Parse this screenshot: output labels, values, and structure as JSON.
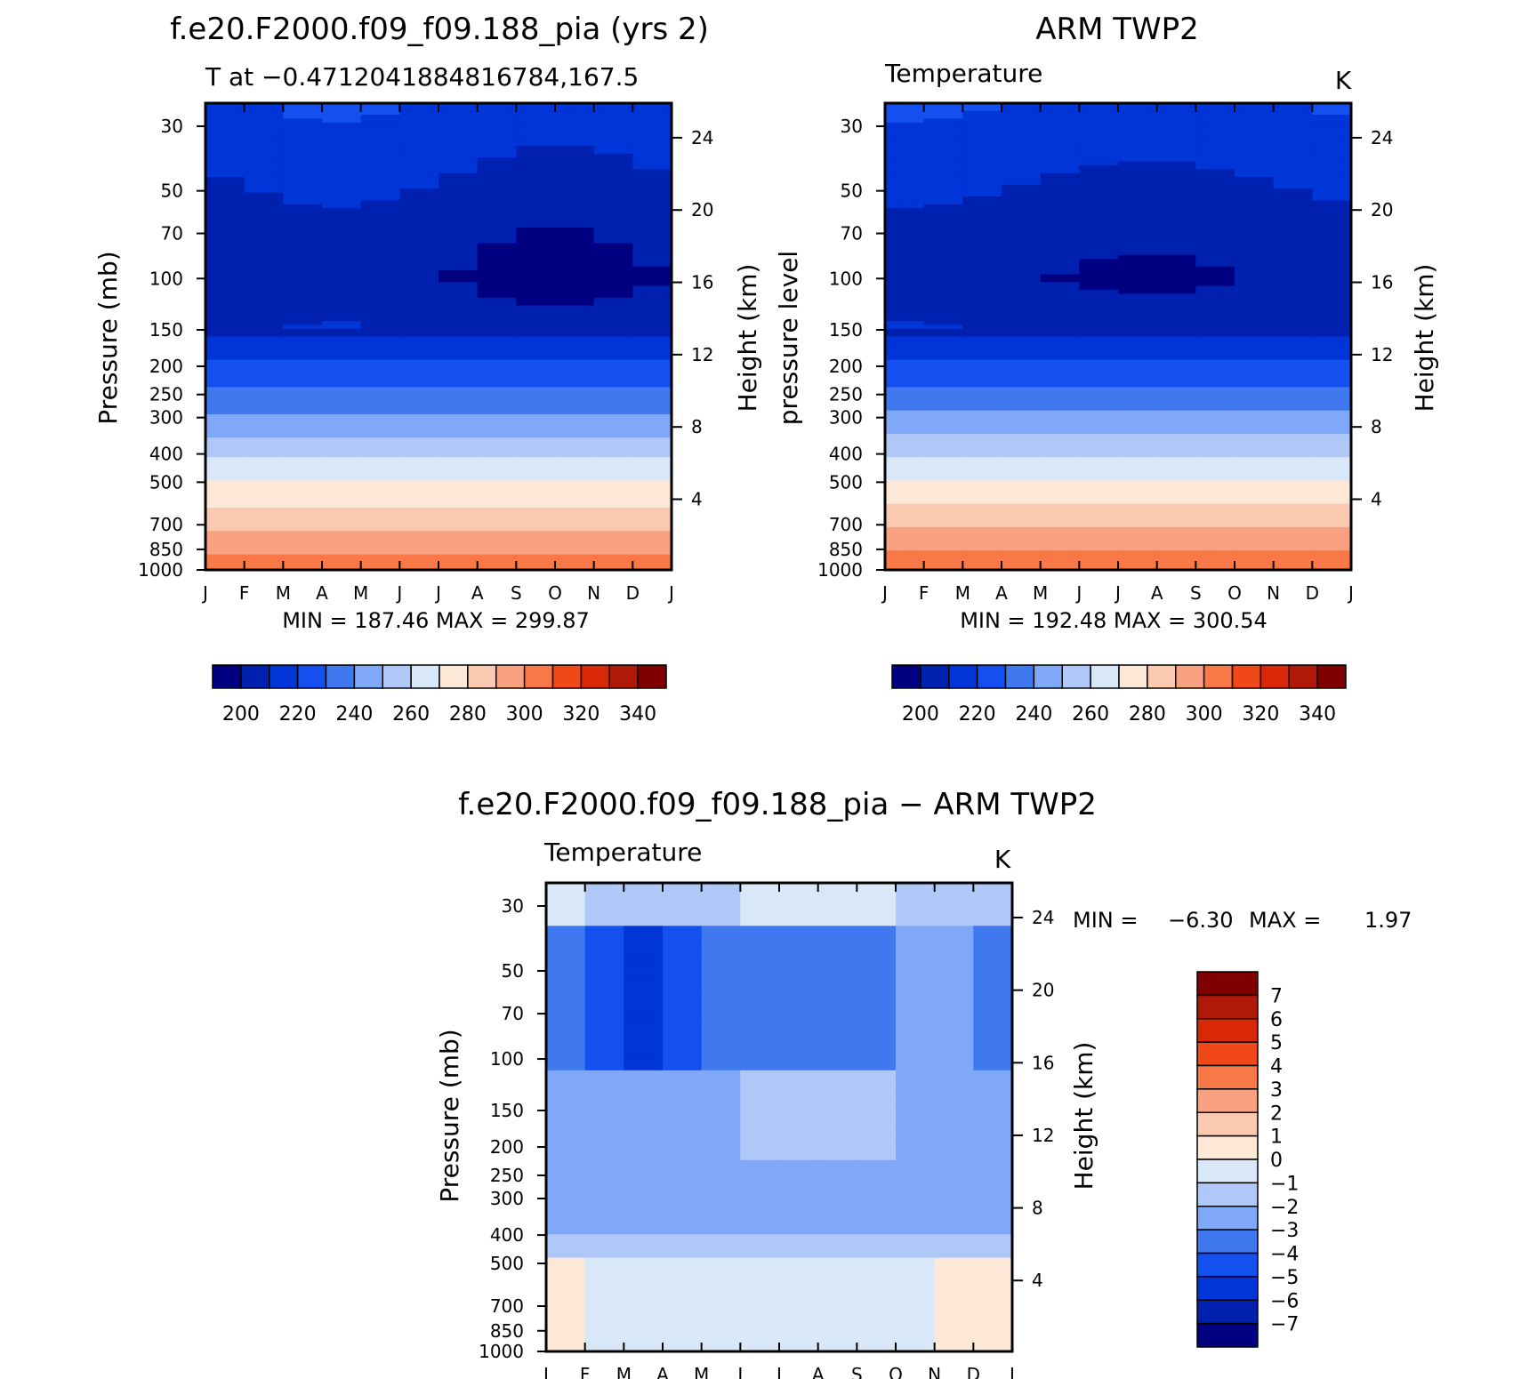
{
  "chart_data": [
    {
      "type": "heatmap",
      "title": "f.e20.F2000.f09_f09.188_pia (yrs 2)",
      "subtitle_left": "T at −0.471204188481678­4,167.5",
      "subtitle_right": "K",
      "ylabel": "Pressure (mb)",
      "ylabel_right": "Height (km)",
      "x_ticks": [
        "J",
        "F",
        "M",
        "A",
        "M",
        "J",
        "J",
        "A",
        "S",
        "O",
        "N",
        "D",
        "J"
      ],
      "y_ticks": [
        "30",
        "50",
        "70",
        "100",
        "150",
        "200",
        "250",
        "300",
        "400",
        "500",
        "700",
        "850",
        "1000"
      ],
      "y_ticks_right": [
        "24",
        "20",
        "16",
        "12",
        "8",
        "4"
      ],
      "y_scale": "log pressure",
      "min_max_text": "MIN =  187.46  MAX =  299.87",
      "min": 187.46,
      "max": 299.87,
      "colorbar_labels": [
        "200",
        "220",
        "240",
        "260",
        "280",
        "300",
        "320",
        "340"
      ],
      "band_levels_by_pressure": [
        {
          "p": 30,
          "t": 210
        },
        {
          "p": 50,
          "t": 200
        },
        {
          "p": 100,
          "t": 190
        },
        {
          "p": 150,
          "t": 200
        },
        {
          "p": 200,
          "t": 215
        },
        {
          "p": 250,
          "t": 225
        },
        {
          "p": 300,
          "t": 235
        },
        {
          "p": 400,
          "t": 250
        },
        {
          "p": 500,
          "t": 262
        },
        {
          "p": 700,
          "t": 278
        },
        {
          "p": 850,
          "t": 288
        },
        {
          "p": 1000,
          "t": 298
        }
      ]
    },
    {
      "type": "heatmap",
      "title": "ARM TWP2",
      "subtitle_left": "Temperature",
      "subtitle_right": "K",
      "ylabel": "pressure level",
      "ylabel_right": "Height (km)",
      "x_ticks": [
        "J",
        "F",
        "M",
        "A",
        "M",
        "J",
        "J",
        "A",
        "S",
        "O",
        "N",
        "D",
        "J"
      ],
      "y_ticks": [
        "30",
        "50",
        "70",
        "100",
        "150",
        "200",
        "250",
        "300",
        "400",
        "500",
        "700",
        "850",
        "1000"
      ],
      "y_ticks_right": [
        "24",
        "20",
        "16",
        "12",
        "8",
        "4"
      ],
      "y_scale": "log pressure",
      "min_max_text": "MIN =  192.48  MAX =  300.54",
      "min": 192.48,
      "max": 300.54,
      "colorbar_labels": [
        "200",
        "220",
        "240",
        "260",
        "280",
        "300",
        "320",
        "340"
      ]
    },
    {
      "type": "heatmap",
      "title": "f.e20.F2000.f09_f09.188_pia − ARM TWP2",
      "subtitle_left": "Temperature",
      "subtitle_right": "K",
      "ylabel": "Pressure (mb)",
      "ylabel_right": "Height (km)",
      "x_ticks": [
        "J",
        "F",
        "M",
        "A",
        "M",
        "J",
        "J",
        "A",
        "S",
        "O",
        "N",
        "D",
        "J"
      ],
      "y_ticks": [
        "30",
        "50",
        "70",
        "100",
        "150",
        "200",
        "250",
        "300",
        "400",
        "500",
        "700",
        "850",
        "1000"
      ],
      "y_ticks_right": [
        "24",
        "20",
        "16",
        "12",
        "8",
        "4"
      ],
      "y_scale": "log pressure",
      "min_label": "MIN =",
      "min_value": "−6.30",
      "max_label": "MAX =",
      "max_value": "1.97",
      "min": -6.3,
      "max": 1.97,
      "colorbar_labels": [
        "7",
        "6",
        "5",
        "4",
        "3",
        "2",
        "1",
        "0",
        "−1",
        "−2",
        "−3",
        "−4",
        "−5",
        "−6",
        "−7"
      ]
    }
  ],
  "colors": {
    "temp_scale": [
      "#000080",
      "#0020b0",
      "#0035d8",
      "#1450f0",
      "#4078f0",
      "#80a8f8",
      "#b0c8f8",
      "#d8e8f8",
      "#fde8d8",
      "#fbc8b0",
      "#f8a080",
      "#f87848",
      "#f04818",
      "#d82808",
      "#b01808",
      "#800000"
    ],
    "diff_scale": [
      "#800000",
      "#b01808",
      "#d82808",
      "#f04818",
      "#f87848",
      "#f8a080",
      "#fbc8b0",
      "#fde8d8",
      "#d8e8f8",
      "#b0c8f8",
      "#80a8f8",
      "#4078f0",
      "#1450f0",
      "#0035d8",
      "#0020b0",
      "#000080"
    ]
  }
}
